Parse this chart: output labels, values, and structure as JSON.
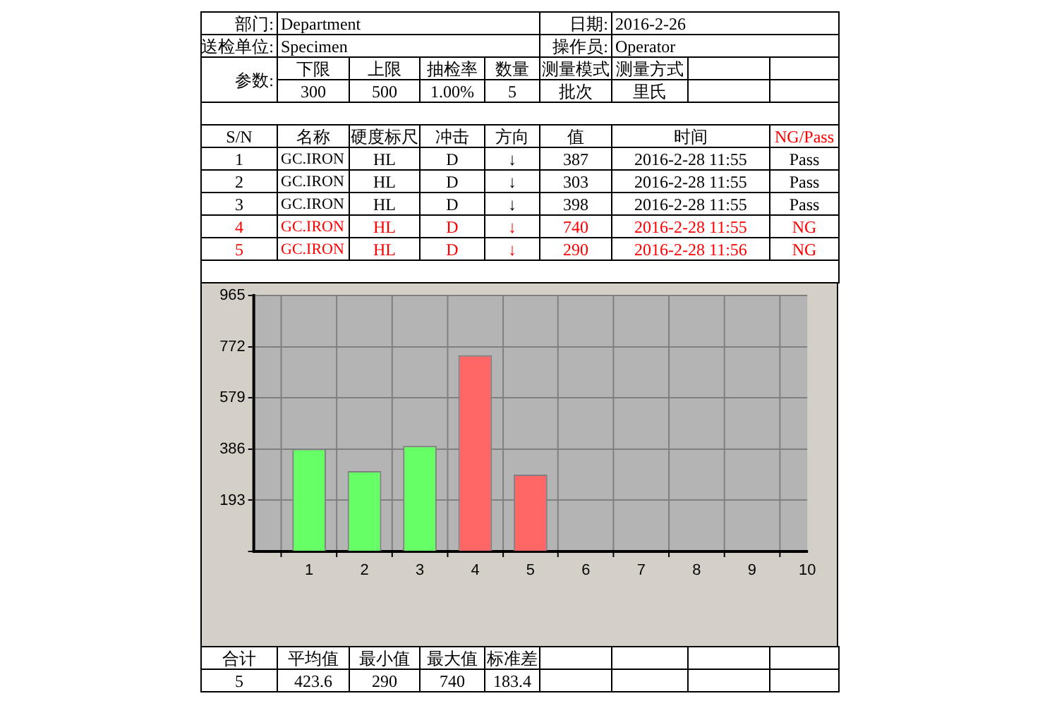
{
  "chart_data": {
    "type": "bar",
    "x": [
      1,
      2,
      3,
      4,
      5
    ],
    "values": [
      387,
      303,
      398,
      740,
      290
    ],
    "colors": [
      "#66ff66",
      "#66ff66",
      "#66ff66",
      "#ff6666",
      "#ff6666"
    ],
    "xlim": [
      0,
      10
    ],
    "xticks": [
      1,
      2,
      3,
      4,
      5,
      6,
      7,
      8,
      9,
      10
    ],
    "ylim": [
      0,
      965
    ],
    "yticks": [
      {
        "value": 0,
        "label": null
      },
      193,
      386,
      579,
      772,
      965
    ],
    "grid": true,
    "annotations": [
      "部门:",
      "Department",
      "日期:",
      "2016-2-26",
      "送检单位:",
      "Specimen",
      "操作员:",
      "Operator",
      "参数:",
      "下限",
      "上限",
      "抽检率",
      "数量",
      "测量模式",
      "测量方式",
      "300",
      "500",
      "1.00%",
      "5",
      "批次",
      "里氏",
      "S/N",
      "名称",
      "硬度标尺",
      "冲击",
      "方向",
      "值",
      "时间",
      "NG/Pass",
      "1",
      "GC.IRON",
      "HL",
      "D",
      "↓",
      "387",
      "2016-2-28 11:55",
      "Pass",
      "2",
      "GC.IRON",
      "HL",
      "D",
      "↓",
      "303",
      "2016-2-28 11:55",
      "Pass",
      "3",
      "GC.IRON",
      "HL",
      "D",
      "↓",
      "398",
      "2016-2-28 11:55",
      "Pass",
      "4",
      "GC.IRON",
      "HL",
      "D",
      "↓",
      "740",
      "2016-2-28 11:55",
      "NG",
      "5",
      "GC.IRON",
      "HL",
      "D",
      "↓",
      "290",
      "2016-2-28 11:56",
      "NG",
      "合计",
      "平均值",
      "最小值",
      "最大值",
      "标准差",
      "5",
      "423.6",
      "290",
      "740",
      "183.4"
    ]
  }
}
